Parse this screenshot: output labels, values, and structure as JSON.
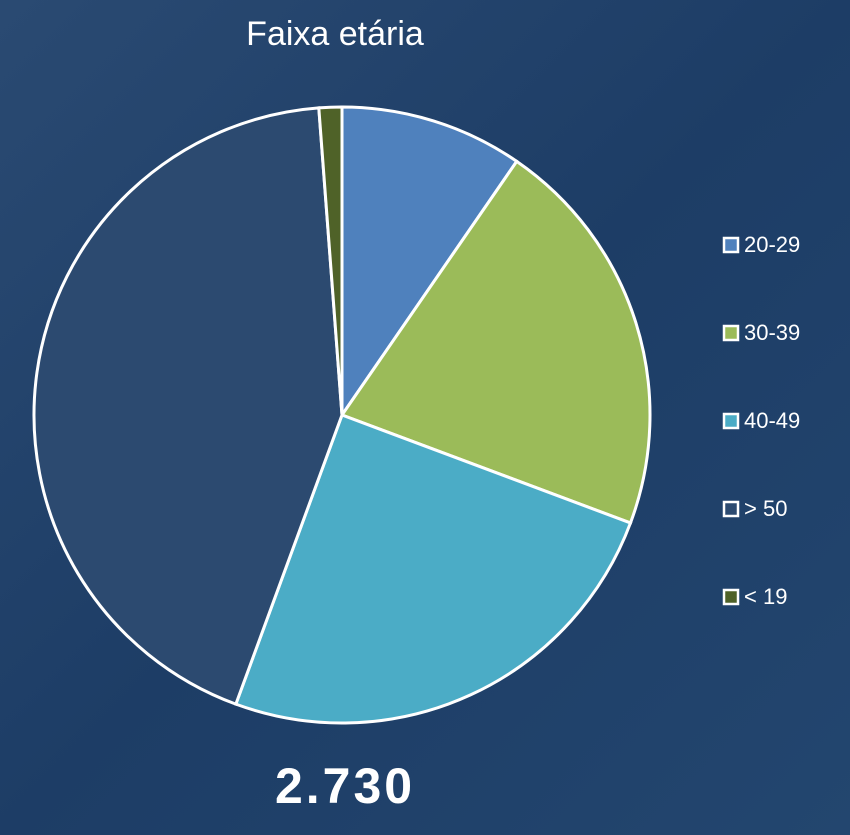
{
  "chart_data": {
    "type": "pie",
    "title": "Faixa etária",
    "categories": [
      "20-29",
      "30-39",
      "40-49",
      "> 50",
      "< 19"
    ],
    "values": [
      9.6,
      21.1,
      24.9,
      43.2,
      1.2
    ],
    "colors": [
      "#4f81bd",
      "#9bbb59",
      "#4bacc6",
      "#2c4a70",
      "#4f6228"
    ],
    "legend": "right",
    "annotation": "2.730"
  }
}
